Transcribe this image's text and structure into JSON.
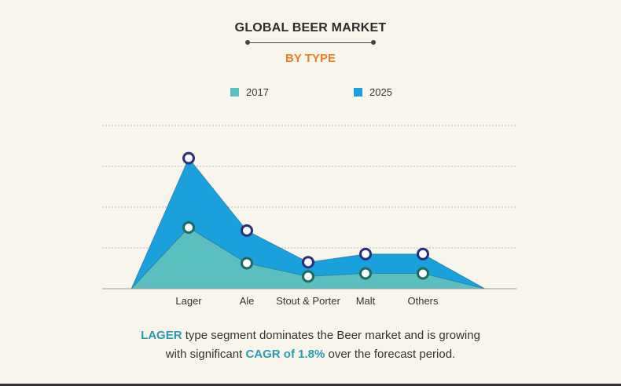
{
  "header": {
    "title": "GLOBAL BEER MARKET",
    "subtitle": "BY TYPE"
  },
  "legend": [
    {
      "label": "2017",
      "color": "#5bbfbf"
    },
    {
      "label": "2025",
      "color": "#1aa0dc"
    }
  ],
  "caption": {
    "part1": "LAGER",
    "part2": " type segment dominates the Beer market and is growing",
    "part3": "with significant ",
    "part4": "CAGR of 1.8%",
    "part5": " over the forecast period."
  },
  "chart_data": {
    "type": "area",
    "title": "GLOBAL BEER MARKET",
    "subtitle": "BY TYPE",
    "categories": [
      "Lager",
      "Ale",
      "Stout & Porter",
      "Malt",
      "Others"
    ],
    "series": [
      {
        "name": "2017",
        "values": [
          3.0,
          1.25,
          0.6,
          0.75,
          0.75
        ],
        "color": "#5bbfbf",
        "marker_stroke": "#1e6b5c"
      },
      {
        "name": "2025",
        "values": [
          6.4,
          2.85,
          1.3,
          1.7,
          1.7
        ],
        "color": "#1aa0dc",
        "marker_stroke": "#2a2f7a"
      }
    ],
    "ylim": [
      0,
      8
    ],
    "grid": true,
    "legend_position": "top-center"
  }
}
